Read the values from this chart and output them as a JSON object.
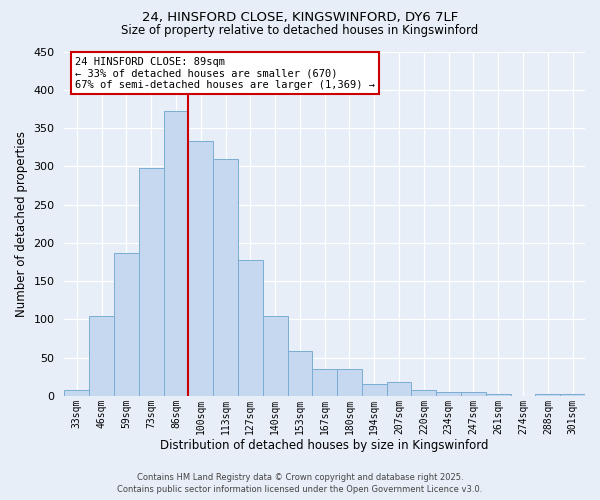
{
  "title1": "24, HINSFORD CLOSE, KINGSWINFORD, DY6 7LF",
  "title2": "Size of property relative to detached houses in Kingswinford",
  "xlabel": "Distribution of detached houses by size in Kingswinford",
  "ylabel": "Number of detached properties",
  "bar_labels": [
    "33sqm",
    "46sqm",
    "59sqm",
    "73sqm",
    "86sqm",
    "100sqm",
    "113sqm",
    "127sqm",
    "140sqm",
    "153sqm",
    "167sqm",
    "180sqm",
    "194sqm",
    "207sqm",
    "220sqm",
    "234sqm",
    "247sqm",
    "261sqm",
    "274sqm",
    "288sqm",
    "301sqm"
  ],
  "bar_values": [
    8,
    105,
    187,
    298,
    372,
    333,
    310,
    177,
    104,
    59,
    35,
    35,
    15,
    18,
    8,
    5,
    5,
    2,
    0,
    3,
    2
  ],
  "bar_color": "#c5d8f0",
  "bar_edge_color": "#7aadd4",
  "vline_color": "#cc0000",
  "vline_pos": 4.5,
  "annotation_title": "24 HINSFORD CLOSE: 89sqm",
  "annotation_line1": "← 33% of detached houses are smaller (670)",
  "annotation_line2": "67% of semi-detached houses are larger (1,369) →",
  "annotation_box_color": "#ffffff",
  "annotation_box_edge": "#cc0000",
  "ylim": [
    0,
    450
  ],
  "yticks": [
    0,
    50,
    100,
    150,
    200,
    250,
    300,
    350,
    400,
    450
  ],
  "footer1": "Contains HM Land Registry data © Crown copyright and database right 2025.",
  "footer2": "Contains public sector information licensed under the Open Government Licence v3.0.",
  "bg_color": "#e8eef7",
  "plot_bg_color": "#e8eef7",
  "grid_color": "#ffffff",
  "title1_fontsize": 9.5,
  "title2_fontsize": 8.5
}
